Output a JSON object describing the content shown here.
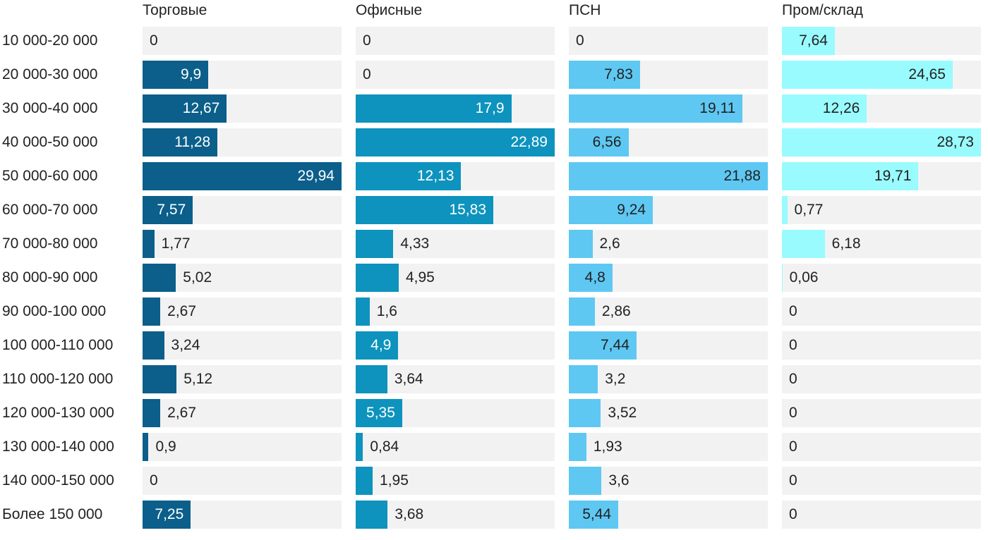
{
  "chart_data": {
    "type": "bar",
    "orientation": "horizontal",
    "layout": "small-multiples",
    "categories": [
      "10 000-20 000",
      "20 000-30 000",
      "30 000-40 000",
      "40 000-50 000",
      "50 000-60 000",
      "60 000-70 000",
      "70 000-80 000",
      "80 000-90 000",
      "90 000-100 000",
      "100 000-110 000",
      "110 000-120 000",
      "120 000-130 000",
      "130 000-140 000",
      "140 000-150 000",
      "Более 150 000"
    ],
    "series": [
      {
        "name": "Торговые",
        "color": "#0b5f8a",
        "values": [
          0,
          9.9,
          12.67,
          11.28,
          29.94,
          7.57,
          1.77,
          5.02,
          2.67,
          3.24,
          5.12,
          2.67,
          0.9,
          0,
          7.25
        ],
        "labels": [
          "0",
          "9,9",
          "12,67",
          "11,28",
          "29,94",
          "7,57",
          "1,77",
          "5,02",
          "2,67",
          "3,24",
          "5,12",
          "2,67",
          "0,9",
          "0",
          "7,25"
        ]
      },
      {
        "name": "Офисные",
        "color": "#0d93bd",
        "values": [
          0,
          0,
          17.9,
          22.89,
          12.13,
          15.83,
          4.33,
          4.95,
          1.6,
          4.9,
          3.64,
          5.35,
          0.84,
          1.95,
          3.68
        ],
        "labels": [
          "0",
          "0",
          "17,9",
          "22,89",
          "12,13",
          "15,83",
          "4,33",
          "4,95",
          "1,6",
          "4,9",
          "3,64",
          "5,35",
          "0,84",
          "1,95",
          "3,68"
        ]
      },
      {
        "name": "ПСН",
        "color": "#5ec8f2",
        "values": [
          0,
          7.83,
          19.11,
          6.56,
          21.88,
          9.24,
          2.6,
          4.8,
          2.86,
          7.44,
          3.2,
          3.52,
          1.93,
          3.6,
          5.44
        ],
        "labels": [
          "0",
          "7,83",
          "19,11",
          "6,56",
          "21,88",
          "9,24",
          "2,6",
          "4,8",
          "2,86",
          "7,44",
          "3,2",
          "3,52",
          "1,93",
          "3,6",
          "5,44"
        ]
      },
      {
        "name": "Пром/склад",
        "color": "#99fbfe",
        "values": [
          7.64,
          24.65,
          12.26,
          28.73,
          19.71,
          0.77,
          6.18,
          0.06,
          0,
          0,
          0,
          0,
          0,
          0,
          0
        ],
        "labels": [
          "7,64",
          "24,65",
          "12,26",
          "28,73",
          "19,71",
          "0,77",
          "6,18",
          "0,06",
          "0",
          "0",
          "0",
          "0",
          "0",
          "0",
          "0"
        ]
      }
    ],
    "panel_max": [
      29.94,
      22.89,
      21.88,
      28.73
    ],
    "inside_label": [
      [
        false,
        true,
        true,
        true,
        true,
        true,
        false,
        false,
        false,
        false,
        false,
        false,
        false,
        false,
        true
      ],
      [
        false,
        false,
        true,
        true,
        true,
        true,
        false,
        false,
        false,
        true,
        false,
        true,
        false,
        false,
        false
      ],
      [
        false,
        true,
        true,
        true,
        true,
        true,
        false,
        true,
        false,
        true,
        false,
        false,
        false,
        false,
        true
      ],
      [
        true,
        true,
        true,
        true,
        true,
        false,
        false,
        false,
        false,
        false,
        false,
        false,
        false,
        false,
        false
      ]
    ],
    "inside_label_color": [
      "#ffffff",
      "#ffffff",
      "#222222",
      "#222222"
    ],
    "track_color": "#f2f2f2",
    "grid": false,
    "legend": "none"
  }
}
